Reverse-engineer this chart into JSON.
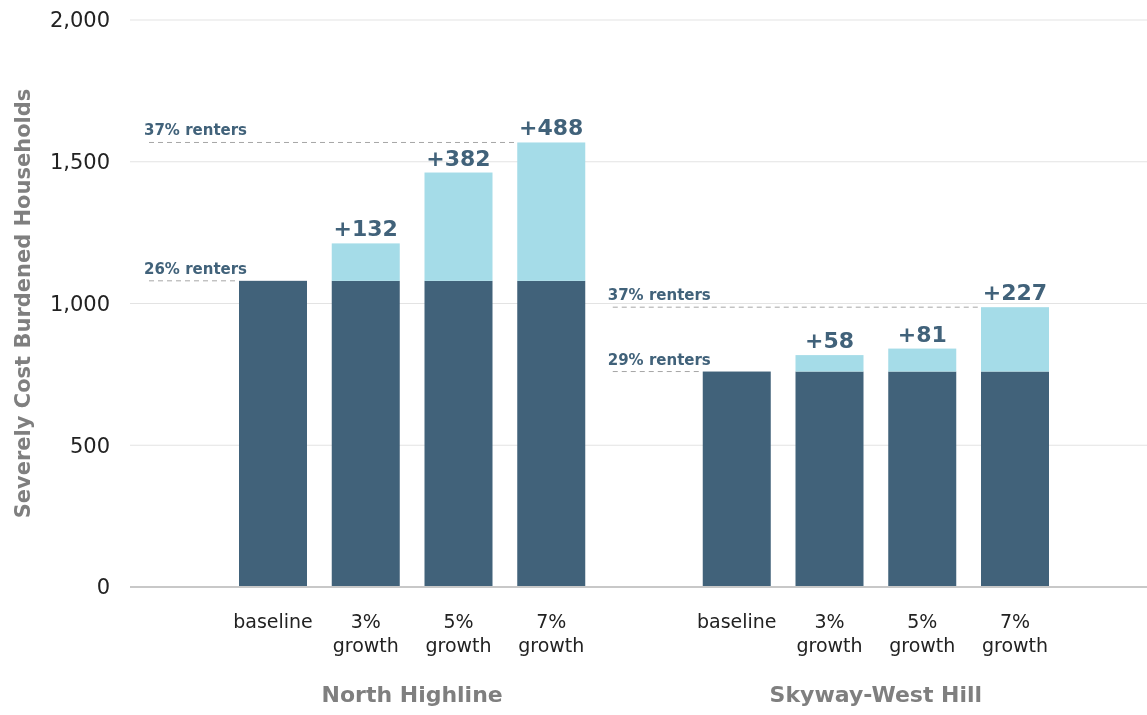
{
  "chart_data": {
    "type": "bar",
    "stacked": true,
    "categories": [
      "baseline",
      "3% growth",
      "5% growth",
      "7% growth",
      null,
      "baseline",
      "3% growth",
      "5% growth",
      "7% growth"
    ],
    "series": [
      {
        "color": "#41627a",
        "values": [
          1080,
          1080,
          1080,
          1080,
          null,
          760,
          760,
          760,
          760
        ]
      },
      {
        "color": "#a5dce8",
        "values": [
          0,
          132,
          382,
          488,
          null,
          0,
          58,
          81,
          227
        ],
        "value_labels": [
          null,
          "+132",
          "+382",
          "+488",
          null,
          null,
          "+58",
          "+81",
          "+227"
        ]
      }
    ],
    "ylabel": "Severely Cost Burdened Households",
    "ylim": [
      0,
      2000
    ],
    "yticks": [
      0,
      {
        "value": 500,
        "label": "500"
      },
      {
        "value": 1000,
        "label": "1,000"
      },
      {
        "value": 1500,
        "label": "1,500"
      },
      {
        "value": 2000,
        "label": "2,000"
      }
    ],
    "grid": "y",
    "ref_lines": [
      {
        "axis": "y",
        "value": 1080,
        "label": "26% renters",
        "color": "#a6a6a6",
        "line_style": "dashed"
      },
      {
        "axis": "y",
        "value": 1568,
        "label": "37% renters",
        "color": "#a6a6a6",
        "line_style": "dashed"
      },
      {
        "axis": "y",
        "value": 760,
        "label": "29% renters",
        "color": "#a6a6a6",
        "line_style": "dashed"
      },
      {
        "axis": "y",
        "value": 987,
        "label": "37% renters",
        "color": "#a6a6a6",
        "line_style": "dashed"
      }
    ],
    "annotations": [
      "North Highline",
      "Skyway-West Hill"
    ]
  }
}
